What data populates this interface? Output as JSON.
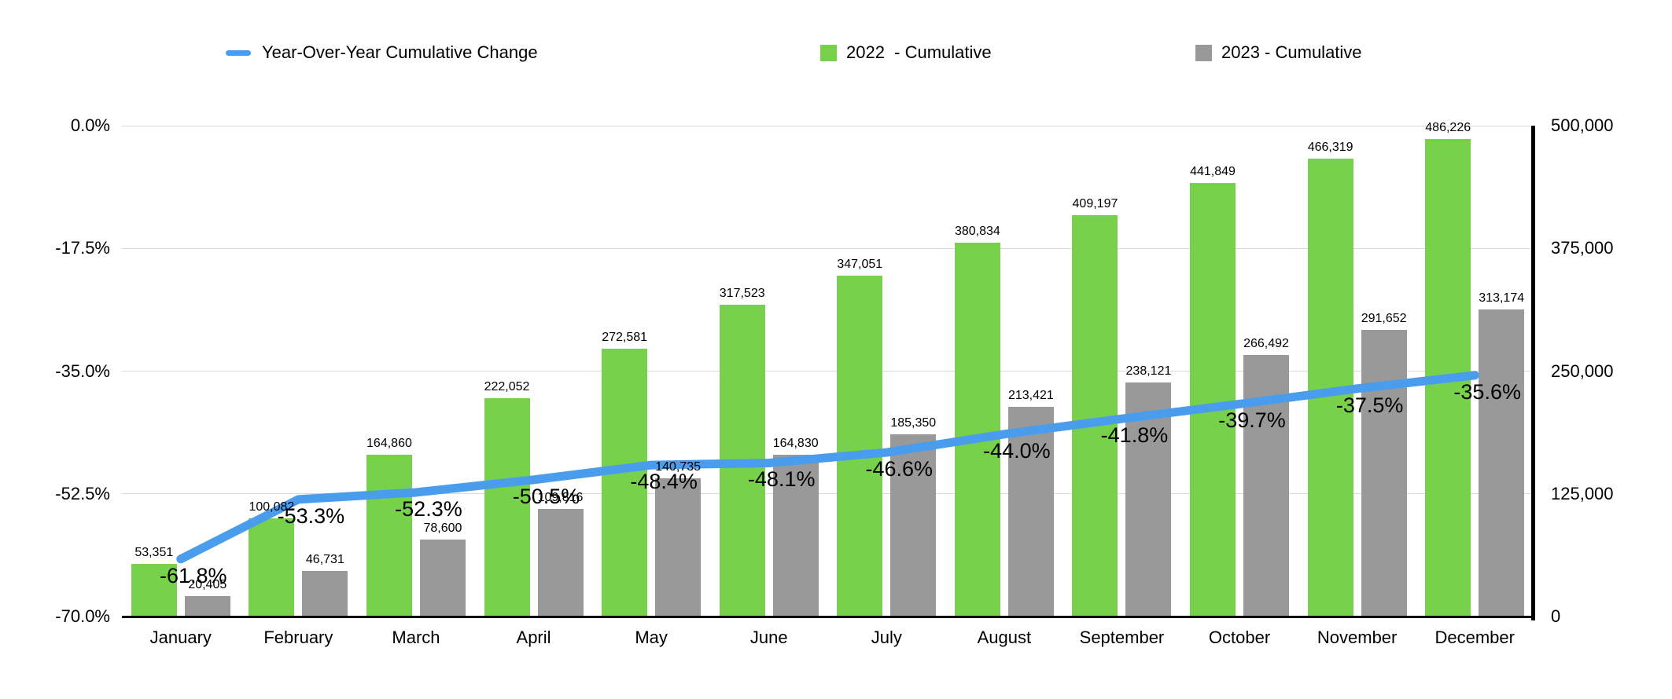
{
  "legend": {
    "items": [
      {
        "label": "Year-Over-Year Cumulative Change",
        "swatch": "line-dash",
        "color": "#4a9ded"
      },
      {
        "label": "2022  - Cumulative",
        "swatch": "square",
        "color": "#77d14b"
      },
      {
        "label": "2023 - Cumulative",
        "swatch": "square",
        "color": "#999999"
      }
    ]
  },
  "colors": {
    "green_2022": "#77d14b",
    "gray_2023": "#999999",
    "blue_line": "#4a9ded",
    "gridline": "#d9d9d9",
    "axis": "#000000",
    "text": "#000000",
    "background": "#ffffff"
  },
  "chart_data": {
    "type": "bar",
    "subtype": "combo-bar-line-dual-axis",
    "title": "",
    "xlabel": "",
    "ylabel": "",
    "grid": true,
    "legend_position": "top",
    "categories": [
      "January",
      "February",
      "March",
      "April",
      "May",
      "June",
      "July",
      "August",
      "September",
      "October",
      "November",
      "December"
    ],
    "series": [
      {
        "name": "Year-Over-Year Cumulative Change",
        "type": "line",
        "axis": "left-percent",
        "color": "#4a9ded",
        "values": [
          -61.8,
          -53.3,
          -52.3,
          -50.5,
          -48.4,
          -48.1,
          -46.6,
          -44.0,
          -41.8,
          -39.7,
          -37.5,
          -35.6
        ],
        "labels": [
          "-61.8%",
          "-53.3%",
          "-52.3%",
          "-50.5%",
          "-48.4%",
          "-48.1%",
          "-46.6%",
          "-44.0%",
          "-41.8%",
          "-39.7%",
          "-37.5%",
          "-35.6%"
        ]
      },
      {
        "name": "2022  - Cumulative",
        "type": "bar",
        "axis": "right-count",
        "color": "#77d14b",
        "values": [
          53351,
          100082,
          164860,
          222052,
          272581,
          317523,
          347051,
          380834,
          409197,
          441849,
          466319,
          486226
        ],
        "labels": [
          "53,351",
          "100,082",
          "164,860",
          "222,052",
          "272,581",
          "317,523",
          "347,051",
          "380,834",
          "409,197",
          "441,849",
          "466,319",
          "486,226"
        ]
      },
      {
        "name": "2023 - Cumulative",
        "type": "bar",
        "axis": "right-count",
        "color": "#999999",
        "values": [
          20405,
          46731,
          78600,
          109816,
          140735,
          164830,
          185350,
          213421,
          238121,
          266492,
          291652,
          313174
        ],
        "labels": [
          "20,405",
          "46,731",
          "78,600",
          "109,816",
          "140,735",
          "164,830",
          "185,350",
          "213,421",
          "238,121",
          "266,492",
          "291,652",
          "313,174"
        ]
      }
    ],
    "left_axis": {
      "min": -70,
      "max": 0,
      "ticks": [
        "0.0%",
        "-17.5%",
        "-35.0%",
        "-52.5%",
        "-70.0%"
      ]
    },
    "right_axis": {
      "min": 0,
      "max": 500000,
      "ticks": [
        "500,000",
        "375,000",
        "250,000",
        "125,000",
        "0"
      ]
    }
  }
}
